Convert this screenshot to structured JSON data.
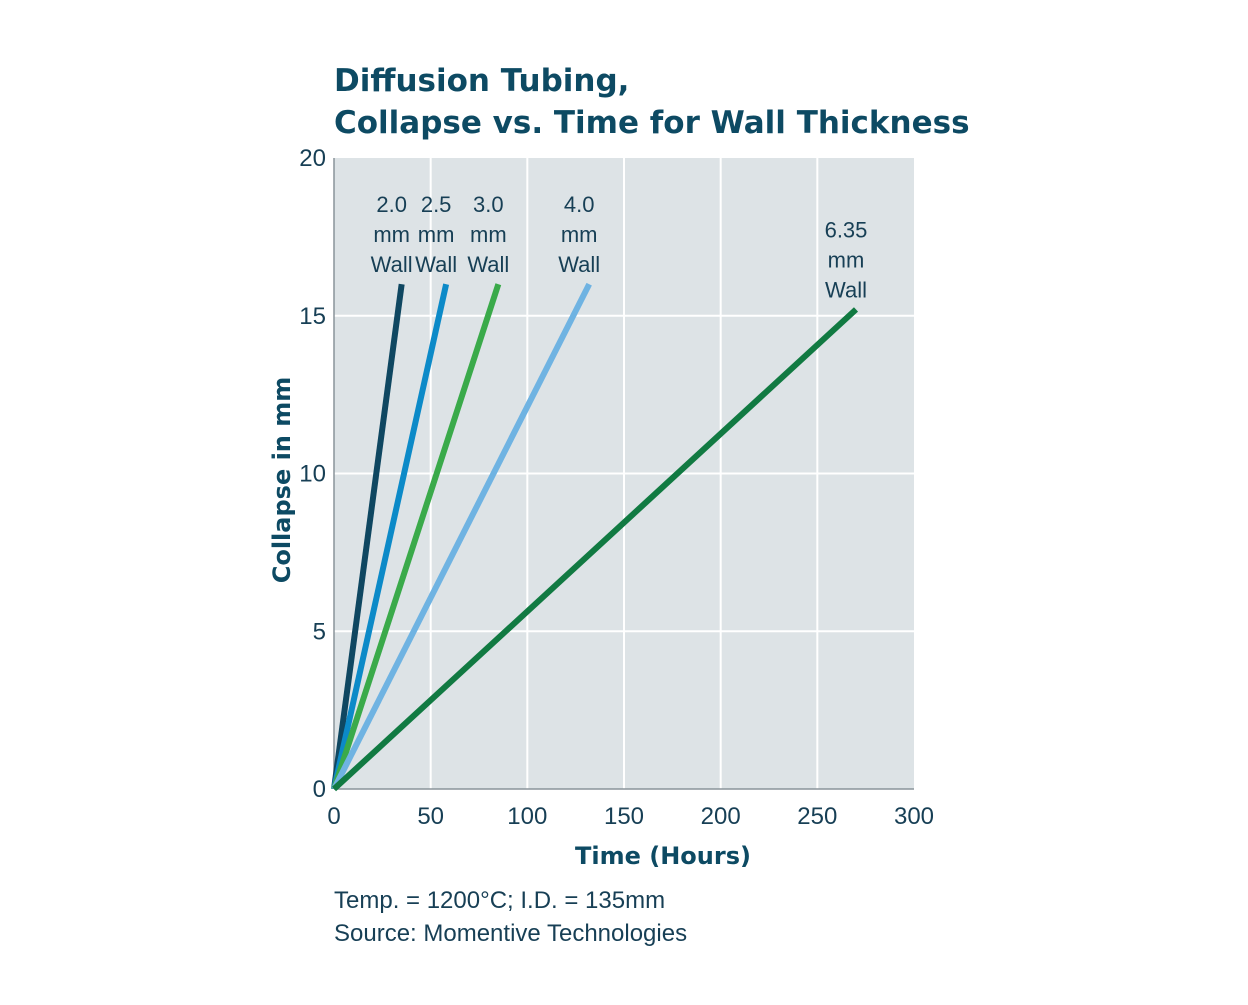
{
  "chart_data": {
    "type": "line",
    "title_lines": [
      "Diffusion Tubing,",
      "Collapse vs. Time for Wall Thickness"
    ],
    "xlabel": "Time (Hours)",
    "ylabel": "Collapse in mm",
    "xlim": [
      0,
      300
    ],
    "ylim": [
      0,
      20
    ],
    "x_ticks": [
      0,
      50,
      100,
      150,
      200,
      250,
      300
    ],
    "y_ticks": [
      0,
      5,
      10,
      15,
      20
    ],
    "grid": true,
    "background_color": "#dde3e6",
    "series": [
      {
        "name": "2.0 mm Wall",
        "label_lines": [
          "2.0",
          "mm",
          "Wall"
        ],
        "color": "#0f4761",
        "x": [
          0,
          35
        ],
        "y": [
          0,
          16
        ]
      },
      {
        "name": "2.5 mm Wall",
        "label_lines": [
          "2.5",
          "mm",
          "Wall"
        ],
        "color": "#0c8ac8",
        "x": [
          0,
          58
        ],
        "y": [
          0,
          16
        ]
      },
      {
        "name": "3.0 mm Wall",
        "label_lines": [
          "3.0",
          "mm",
          "Wall"
        ],
        "color": "#3aaa4a",
        "x": [
          0,
          85
        ],
        "y": [
          0,
          16
        ]
      },
      {
        "name": "4.0 mm Wall",
        "label_lines": [
          "4.0",
          "mm",
          "Wall"
        ],
        "color": "#6fb3e2",
        "x": [
          0,
          132
        ],
        "y": [
          0,
          16
        ]
      },
      {
        "name": "6.35 mm Wall",
        "label_lines": [
          "6.35",
          "mm",
          "Wall"
        ],
        "color": "#117a42",
        "x": [
          0,
          270
        ],
        "y": [
          0,
          15.2
        ]
      }
    ]
  },
  "notes": {
    "line1": "Temp. = 1200°C; I.D. = 135mm",
    "line2": "Source: Momentive Technologies"
  }
}
